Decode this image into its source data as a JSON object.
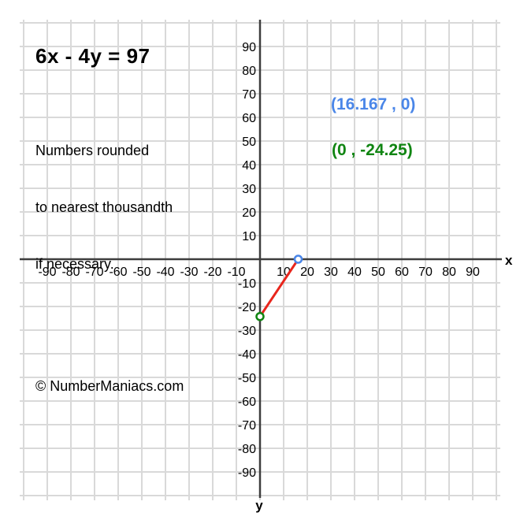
{
  "header": {
    "equation": "6x - 4y = 97"
  },
  "note": {
    "lines": [
      "Numbers rounded",
      "to nearest thousandth",
      "if necessary."
    ]
  },
  "intercepts": {
    "x_label": "(16.167 , 0)",
    "x_color": "#4a86e8",
    "y_label": "(0 , -24.25)",
    "y_color": "#108512"
  },
  "footer": {
    "watermark": "© NumberManiacs.com"
  },
  "chart_data": {
    "type": "line",
    "title": "6x - 4y = 97",
    "points": [
      {
        "name": "x-intercept",
        "x": 16.167,
        "y": 0,
        "color": "#4a86e8"
      },
      {
        "name": "y-intercept",
        "x": 0,
        "y": -24.25,
        "color": "#108512"
      }
    ],
    "segment": {
      "from": [
        0,
        -24.25
      ],
      "to": [
        16.167,
        0
      ],
      "color": "#e8251c"
    },
    "axes": {
      "xlabel": "x",
      "ylabel": "y",
      "xlim": [
        -100,
        100
      ],
      "ylim": [
        -100,
        100
      ],
      "grid": true,
      "grid_step": 10,
      "x_ticks": [
        -90,
        -80,
        -70,
        -60,
        -50,
        -40,
        -30,
        -20,
        -10,
        10,
        20,
        30,
        40,
        50,
        60,
        70,
        80,
        90
      ],
      "y_ticks": [
        90,
        80,
        70,
        60,
        50,
        40,
        30,
        20,
        10,
        -10,
        -20,
        -30,
        -40,
        -50,
        -60,
        -70,
        -80,
        -90
      ]
    },
    "colors": {
      "grid": "#d9d9d9",
      "axis": "#3d3d3d",
      "tick_text": "#000000"
    }
  }
}
